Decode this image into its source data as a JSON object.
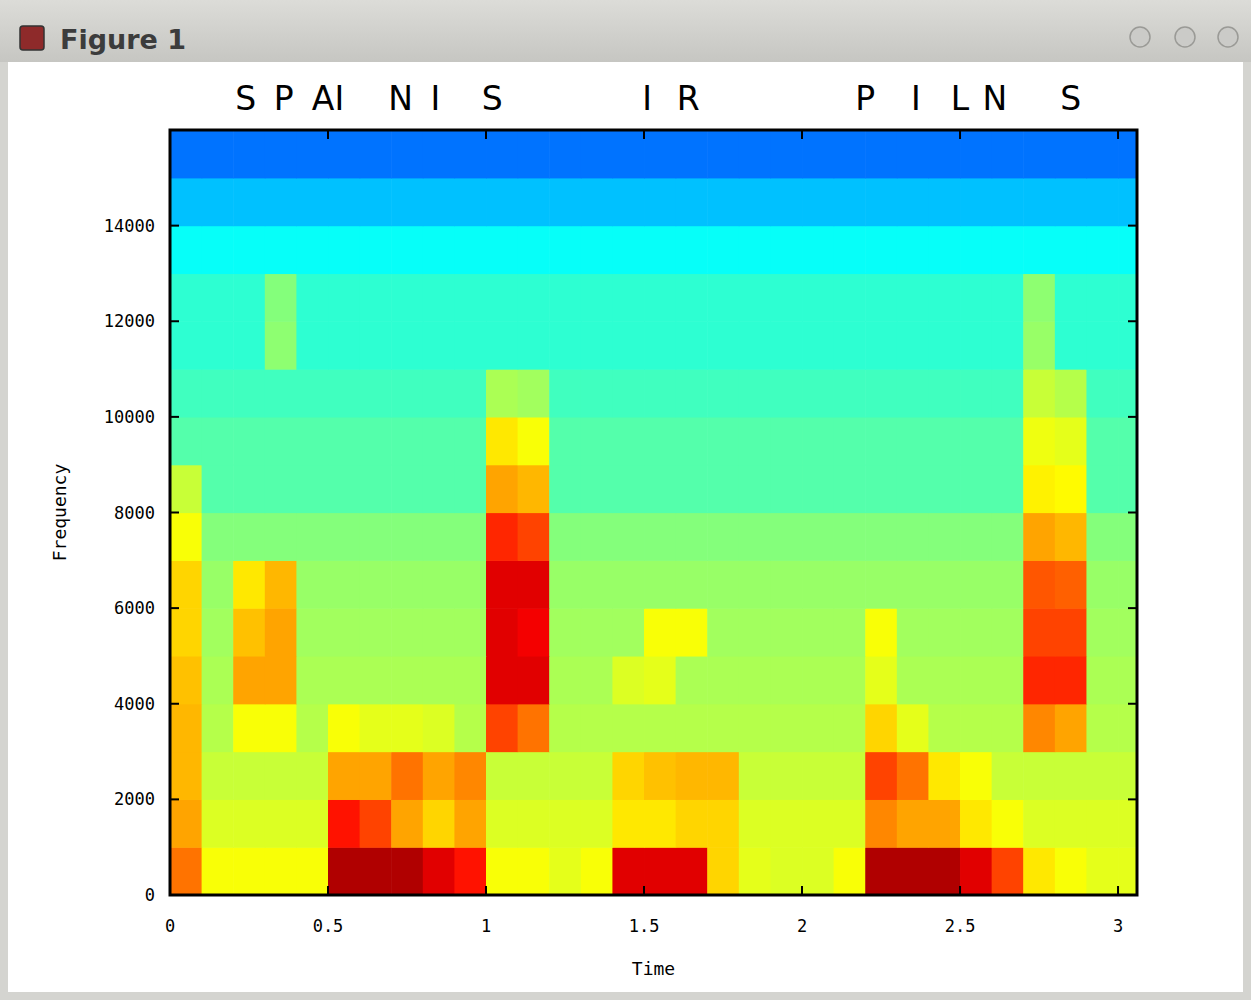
{
  "window": {
    "title": "Figure 1"
  },
  "chart_data": {
    "type": "heatmap",
    "x_label": "Time",
    "y_label": "Frequency",
    "xlim": [
      0,
      3.06
    ],
    "ylim": [
      0,
      16000
    ],
    "xticks": [
      0,
      0.5,
      1,
      1.5,
      2,
      2.5,
      3
    ],
    "yticks": [
      0,
      2000,
      4000,
      6000,
      8000,
      10000,
      12000,
      14000
    ],
    "zlim": [
      -1,
      9.5
    ],
    "annotations": [
      {
        "text": "S",
        "x": 0.24
      },
      {
        "text": "P",
        "x": 0.36
      },
      {
        "text": "AI",
        "x": 0.5
      },
      {
        "text": "N",
        "x": 0.73
      },
      {
        "text": "I",
        "x": 0.84
      },
      {
        "text": "S",
        "x": 1.02
      },
      {
        "text": "I",
        "x": 1.51
      },
      {
        "text": "R",
        "x": 1.64
      },
      {
        "text": "P",
        "x": 2.2
      },
      {
        "text": "I",
        "x": 2.36
      },
      {
        "text": "L",
        "x": 2.5
      },
      {
        "text": "N",
        "x": 2.61
      },
      {
        "text": "S",
        "x": 2.85
      }
    ],
    "x_bins": [
      0,
      0.1,
      0.2,
      0.3,
      0.4,
      0.5,
      0.6,
      0.7,
      0.8,
      0.9,
      1,
      1.1,
      1.2,
      1.3,
      1.4,
      1.5,
      1.6,
      1.7,
      1.8,
      1.9,
      2,
      2.1,
      2.2,
      2.3,
      2.4,
      2.5,
      2.6,
      2.7,
      2.8,
      2.9,
      3,
      3.06
    ],
    "y_bins": [
      0,
      1000,
      2000,
      3000,
      4000,
      5000,
      6000,
      7000,
      8000,
      9000,
      10000,
      11000,
      12000,
      13000,
      14000,
      15000,
      16000
    ],
    "cells": [
      [
        7,
        5.5,
        5.5,
        5.5,
        5.5,
        9,
        9,
        9,
        8.5,
        8,
        5.5,
        5.5,
        5.3,
        5.5,
        8.5,
        8.5,
        8.5,
        6,
        5.3,
        5.2,
        5.2,
        5.5,
        9,
        9,
        9,
        8.5,
        7.5,
        5.8,
        5.5,
        5.3,
        5.3
      ],
      [
        6.5,
        5.2,
        5.2,
        5.2,
        5.2,
        8,
        7.5,
        6.5,
        6,
        6.5,
        5.2,
        5.2,
        5.2,
        5.2,
        5.8,
        5.8,
        6,
        6,
        5.2,
        5.2,
        5.2,
        5.2,
        6.8,
        6.5,
        6.5,
        5.8,
        5.5,
        5.2,
        5.2,
        5.2,
        5.2
      ],
      [
        6.3,
        5,
        5,
        5,
        5,
        6.5,
        6.5,
        7,
        6.5,
        6.8,
        5,
        5,
        5,
        5,
        6,
        6.2,
        6.3,
        6.3,
        5,
        5,
        5,
        5,
        7.5,
        7,
        5.8,
        5.5,
        5,
        5,
        5,
        5,
        5
      ],
      [
        6.3,
        4.8,
        5.5,
        5.5,
        4.8,
        5.5,
        5.3,
        5.3,
        5.2,
        4.8,
        7.5,
        7,
        4.8,
        4.8,
        4.8,
        4.8,
        4.8,
        4.8,
        4.8,
        4.8,
        4.8,
        4.8,
        6,
        5.3,
        4.8,
        4.8,
        4.8,
        6.8,
        6.5,
        4.8,
        4.8
      ],
      [
        6.2,
        4.7,
        6.5,
        6.5,
        4.7,
        4.7,
        4.7,
        4.7,
        4.7,
        4.7,
        8.5,
        8.5,
        4.7,
        4.7,
        5.2,
        5.3,
        4.7,
        4.7,
        4.7,
        4.7,
        4.7,
        4.7,
        5.3,
        4.7,
        4.7,
        4.7,
        4.7,
        7.8,
        7.8,
        4.7,
        4.7
      ],
      [
        6,
        4.6,
        6.2,
        6.5,
        4.6,
        4.6,
        4.6,
        4.6,
        4.6,
        4.6,
        8.5,
        8.3,
        4.6,
        4.6,
        4.6,
        5.5,
        5.5,
        4.6,
        4.6,
        4.6,
        4.6,
        4.6,
        5.5,
        4.6,
        4.6,
        4.6,
        4.6,
        7.5,
        7.5,
        4.6,
        4.6
      ],
      [
        6,
        4.5,
        5.8,
        6.3,
        4.5,
        4.5,
        4.5,
        4.5,
        4.5,
        4.5,
        8.5,
        8.5,
        4.5,
        4.5,
        4.5,
        4.5,
        4.5,
        4.5,
        4.5,
        4.5,
        4.5,
        4.5,
        4.5,
        4.5,
        4.5,
        4.5,
        4.5,
        7.3,
        7.2,
        4.5,
        4.5
      ],
      [
        5.5,
        4.3,
        4.3,
        4.3,
        4.3,
        4.3,
        4.3,
        4.3,
        4.3,
        4.3,
        7.8,
        7.5,
        4.3,
        4.3,
        4.3,
        4.3,
        4.3,
        4.3,
        4.3,
        4.3,
        4.3,
        4.3,
        4.3,
        4.3,
        4.3,
        4.3,
        4.3,
        6.5,
        6.3,
        4.3,
        4.3
      ],
      [
        5,
        3.8,
        3.8,
        3.8,
        3.8,
        3.8,
        3.8,
        3.8,
        3.8,
        3.8,
        6.5,
        6.3,
        3.8,
        3.8,
        3.8,
        3.8,
        3.8,
        3.8,
        3.8,
        3.8,
        3.8,
        3.8,
        3.8,
        3.8,
        3.8,
        3.8,
        3.8,
        5.7,
        5.6,
        3.8,
        3.8
      ],
      [
        3.8,
        3.8,
        3.8,
        3.8,
        3.8,
        3.8,
        3.8,
        3.8,
        3.8,
        3.8,
        5.8,
        5.5,
        3.8,
        3.8,
        3.8,
        3.8,
        3.8,
        3.8,
        3.8,
        3.8,
        3.8,
        3.8,
        3.8,
        3.8,
        3.8,
        3.8,
        3.8,
        5.4,
        5.3,
        3.8,
        3.8
      ],
      [
        3.6,
        3.6,
        3.6,
        3.6,
        3.6,
        3.6,
        3.6,
        3.6,
        3.6,
        3.6,
        4.7,
        4.6,
        3.6,
        3.6,
        3.6,
        3.6,
        3.6,
        3.6,
        3.6,
        3.6,
        3.6,
        3.6,
        3.6,
        3.6,
        3.6,
        3.6,
        3.6,
        5,
        4.8,
        3.6,
        3.6
      ],
      [
        3.4,
        3.4,
        3.4,
        4.4,
        3.4,
        3.4,
        3.4,
        3.4,
        3.4,
        3.4,
        3.4,
        3.4,
        3.4,
        3.4,
        3.4,
        3.4,
        3.4,
        3.4,
        3.4,
        3.4,
        3.4,
        3.4,
        3.4,
        3.4,
        3.4,
        3.4,
        3.4,
        4.5,
        3.4,
        3.4,
        3.4
      ],
      [
        3.4,
        3.4,
        3.4,
        4.3,
        3.4,
        3.4,
        3.4,
        3.4,
        3.4,
        3.4,
        3.4,
        3.4,
        3.4,
        3.4,
        3.4,
        3.4,
        3.4,
        3.4,
        3.4,
        3.4,
        3.4,
        3.4,
        3.4,
        3.4,
        3.4,
        3.4,
        3.4,
        4.4,
        3.4,
        3.4,
        3.4
      ],
      [
        3,
        3,
        3,
        3,
        3,
        3,
        3,
        3,
        3,
        3,
        3,
        3,
        3,
        3,
        3,
        3,
        3,
        3,
        3,
        3,
        3,
        3,
        3,
        3,
        3,
        3,
        3,
        3,
        3,
        3,
        3
      ],
      [
        2.3,
        2.3,
        2.3,
        2.3,
        2.3,
        2.3,
        2.3,
        2.3,
        2.3,
        2.3,
        2.3,
        2.3,
        2.3,
        2.3,
        2.3,
        2.3,
        2.3,
        2.3,
        2.3,
        2.3,
        2.3,
        2.3,
        2.3,
        2.3,
        2.3,
        2.3,
        2.3,
        2.3,
        2.3,
        2.3,
        2.3
      ],
      [
        1.5,
        1.5,
        1.5,
        1.5,
        1.5,
        1.5,
        1.5,
        1.5,
        1.5,
        1.5,
        1.5,
        1.5,
        1.5,
        1.5,
        1.5,
        1.5,
        1.5,
        1.5,
        1.5,
        1.5,
        1.5,
        1.5,
        1.5,
        1.5,
        1.5,
        1.5,
        1.5,
        1.5,
        1.5,
        1.5,
        1.5
      ]
    ]
  }
}
